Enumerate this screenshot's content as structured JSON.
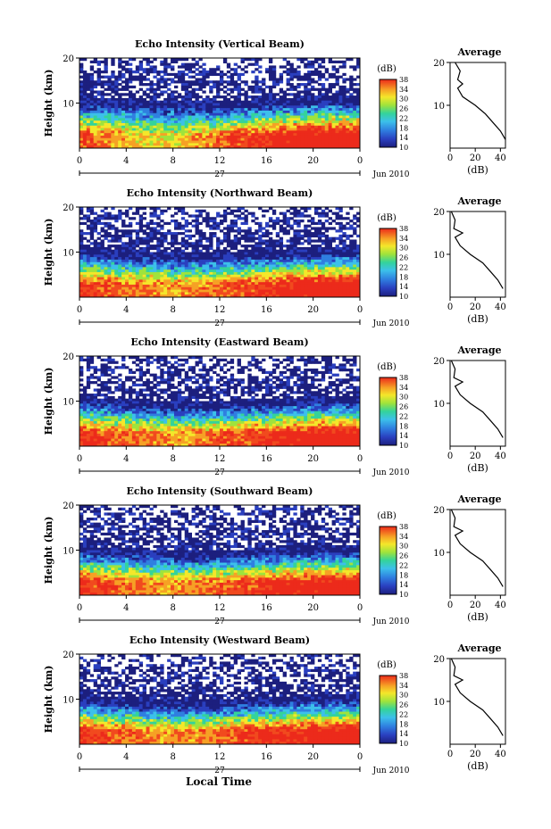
{
  "figure": {
    "xlabel": "Local Time",
    "date_label": "Jun 2010",
    "day_label": "27",
    "ylabel": "Height (km)",
    "colorbar_label": "(dB)",
    "colorbar_ticks": [
      "10",
      "14",
      "18",
      "22",
      "26",
      "30",
      "34",
      "38"
    ],
    "avg_title": "Average",
    "avg_xlabel": "(dB)",
    "avg_xticks": [
      "0",
      "20",
      "40"
    ],
    "yticks": [
      "10",
      "20"
    ],
    "xticks": [
      "0",
      "4",
      "8",
      "12",
      "16",
      "20",
      "0"
    ]
  },
  "colors": {
    "colormap": [
      "#1c1f7e",
      "#2a3fbf",
      "#2f7fe0",
      "#3cc0ea",
      "#34d39a",
      "#9fe33c",
      "#f4e72a",
      "#f6a125",
      "#f14a1e",
      "#ec2a1b"
    ]
  },
  "chart_data": [
    {
      "type": "heatmap",
      "title": "Echo Intensity (Vertical Beam)",
      "x_range": [
        0,
        24
      ],
      "y_range": [
        0,
        20
      ],
      "c_range": [
        10,
        38
      ],
      "surface_level": [
        34,
        30,
        28,
        33,
        37,
        39,
        40
      ],
      "tropopause_km": [
        10.0,
        9.5,
        9.0,
        9.0,
        9.5,
        10.0,
        10.0
      ],
      "average_profile": {
        "height_km": [
          2,
          4,
          6,
          8,
          10,
          12,
          14,
          15,
          16,
          18,
          20
        ],
        "db": [
          44,
          40,
          34,
          28,
          20,
          10,
          6,
          10,
          6,
          8,
          4
        ]
      }
    },
    {
      "type": "heatmap",
      "title": "Echo Intensity (Northward Beam)",
      "x_range": [
        0,
        24
      ],
      "y_range": [
        0,
        20
      ],
      "c_range": [
        10,
        38
      ],
      "surface_level": [
        36,
        33,
        31,
        33,
        36,
        38,
        39
      ],
      "tropopause_km": [
        9.5,
        9.0,
        8.5,
        8.5,
        9.0,
        9.5,
        9.5
      ],
      "average_profile": {
        "height_km": [
          2,
          4,
          6,
          8,
          10,
          12,
          14,
          15,
          16,
          18,
          20
        ],
        "db": [
          42,
          38,
          32,
          26,
          16,
          8,
          4,
          10,
          3,
          4,
          1
        ]
      }
    },
    {
      "type": "heatmap",
      "title": "Echo Intensity (Eastward Beam)",
      "x_range": [
        0,
        24
      ],
      "y_range": [
        0,
        20
      ],
      "c_range": [
        10,
        38
      ],
      "surface_level": [
        36,
        33,
        31,
        33,
        36,
        38,
        39
      ],
      "tropopause_km": [
        9.5,
        9.0,
        8.5,
        8.5,
        9.0,
        9.5,
        9.5
      ],
      "average_profile": {
        "height_km": [
          2,
          4,
          6,
          8,
          10,
          12,
          14,
          15,
          16,
          18,
          20
        ],
        "db": [
          42,
          38,
          32,
          26,
          16,
          8,
          4,
          10,
          3,
          4,
          1
        ]
      }
    },
    {
      "type": "heatmap",
      "title": "Echo Intensity (Southward Beam)",
      "x_range": [
        0,
        24
      ],
      "y_range": [
        0,
        20
      ],
      "c_range": [
        10,
        38
      ],
      "surface_level": [
        36,
        33,
        31,
        33,
        36,
        38,
        39
      ],
      "tropopause_km": [
        9.5,
        9.0,
        8.5,
        8.5,
        9.0,
        9.5,
        9.5
      ],
      "average_profile": {
        "height_km": [
          2,
          4,
          6,
          8,
          10,
          12,
          14,
          15,
          16,
          18,
          20
        ],
        "db": [
          42,
          38,
          32,
          26,
          16,
          8,
          4,
          10,
          3,
          4,
          1
        ]
      }
    },
    {
      "type": "heatmap",
      "title": "Echo Intensity (Westward Beam)",
      "x_range": [
        0,
        24
      ],
      "y_range": [
        0,
        20
      ],
      "c_range": [
        10,
        38
      ],
      "surface_level": [
        36,
        33,
        31,
        33,
        36,
        38,
        39
      ],
      "tropopause_km": [
        9.5,
        9.0,
        8.5,
        8.5,
        9.0,
        9.5,
        9.5
      ],
      "average_profile": {
        "height_km": [
          2,
          4,
          6,
          8,
          10,
          12,
          14,
          15,
          16,
          18,
          20
        ],
        "db": [
          42,
          38,
          32,
          26,
          16,
          8,
          4,
          10,
          3,
          4,
          1
        ]
      }
    }
  ]
}
